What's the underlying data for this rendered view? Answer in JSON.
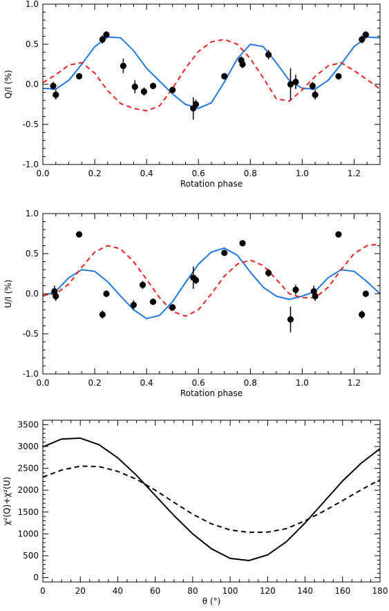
{
  "chart_data": [
    {
      "type": "scatter",
      "xlabel": "Rotation phase",
      "ylabel": "Q/I (%)",
      "xlim": [
        0,
        1.3
      ],
      "ylim": [
        -1.0,
        1.0
      ],
      "xticks": [
        0.0,
        0.2,
        0.4,
        0.6,
        0.8,
        1.0,
        1.2
      ],
      "xtick_labels": [
        "0.0",
        "0.2",
        "0.4",
        "0.6",
        "0.8",
        "1.0",
        "1.2"
      ],
      "yticks": [
        -1.0,
        -0.5,
        0.0,
        0.5,
        1.0
      ],
      "ytick_labels": [
        "-1.0",
        "-0.5",
        "0.0",
        "0.5",
        "1.0"
      ],
      "grid": false,
      "points": [
        {
          "x": 0.04,
          "y": -0.02,
          "err": 0.05
        },
        {
          "x": 0.05,
          "y": -0.13,
          "err": 0.06
        },
        {
          "x": 0.14,
          "y": 0.1,
          "err": 0.03
        },
        {
          "x": 0.23,
          "y": 0.56,
          "err": 0.05
        },
        {
          "x": 0.245,
          "y": 0.62,
          "err": 0.04
        },
        {
          "x": 0.31,
          "y": 0.23,
          "err": 0.09
        },
        {
          "x": 0.355,
          "y": -0.03,
          "err": 0.08
        },
        {
          "x": 0.39,
          "y": -0.09,
          "err": 0.05
        },
        {
          "x": 0.425,
          "y": -0.02,
          "err": 0.04
        },
        {
          "x": 0.5,
          "y": -0.07,
          "err": 0.04
        },
        {
          "x": 0.58,
          "y": -0.3,
          "err": 0.14
        },
        {
          "x": 0.59,
          "y": -0.25,
          "err": 0.06
        },
        {
          "x": 0.7,
          "y": 0.1,
          "err": 0.04
        },
        {
          "x": 0.765,
          "y": 0.3,
          "err": 0.05
        },
        {
          "x": 0.77,
          "y": 0.25,
          "err": 0.05
        },
        {
          "x": 0.87,
          "y": 0.37,
          "err": 0.06
        },
        {
          "x": 0.955,
          "y": 0.0,
          "err": 0.2
        },
        {
          "x": 0.975,
          "y": 0.03,
          "err": 0.09
        },
        {
          "x": 1.04,
          "y": -0.02,
          "err": 0.05
        },
        {
          "x": 1.05,
          "y": -0.13,
          "err": 0.06
        },
        {
          "x": 1.14,
          "y": 0.1,
          "err": 0.03
        },
        {
          "x": 1.23,
          "y": 0.56,
          "err": 0.05
        },
        {
          "x": 1.245,
          "y": 0.62,
          "err": 0.04
        }
      ],
      "series": [
        {
          "style": "solid",
          "color": "#1f77e0",
          "x": [
            0,
            0.05,
            0.1,
            0.15,
            0.2,
            0.25,
            0.3,
            0.35,
            0.4,
            0.45,
            0.5,
            0.55,
            0.6,
            0.65,
            0.7,
            0.75,
            0.8,
            0.85,
            0.9,
            0.95,
            1.0,
            1.05,
            1.1,
            1.15,
            1.2,
            1.25,
            1.3
          ],
          "y": [
            -0.05,
            -0.06,
            0.05,
            0.25,
            0.47,
            0.59,
            0.58,
            0.42,
            0.2,
            0.04,
            -0.12,
            -0.25,
            -0.3,
            -0.23,
            0.03,
            0.32,
            0.5,
            0.47,
            0.27,
            0.05,
            -0.05,
            -0.06,
            0.05,
            0.25,
            0.47,
            0.59,
            0.58
          ]
        },
        {
          "style": "dashed",
          "color": "#e8201e",
          "x": [
            0,
            0.05,
            0.1,
            0.15,
            0.2,
            0.25,
            0.3,
            0.35,
            0.4,
            0.45,
            0.5,
            0.55,
            0.6,
            0.65,
            0.7,
            0.75,
            0.8,
            0.85,
            0.9,
            0.95,
            1.0,
            1.05,
            1.1,
            1.15,
            1.2,
            1.25,
            1.3
          ],
          "y": [
            0.02,
            0.12,
            0.24,
            0.27,
            0.14,
            -0.08,
            -0.24,
            -0.3,
            -0.33,
            -0.27,
            -0.05,
            0.2,
            0.41,
            0.53,
            0.56,
            0.5,
            0.32,
            0.08,
            -0.18,
            -0.21,
            -0.07,
            0.1,
            0.23,
            0.27,
            0.17,
            0.06,
            -0.06
          ]
        }
      ]
    },
    {
      "type": "scatter",
      "xlabel": "Rotation phase",
      "ylabel": "U/I (%)",
      "xlim": [
        0,
        1.3
      ],
      "ylim": [
        -1.0,
        1.0
      ],
      "xticks": [
        0.0,
        0.2,
        0.4,
        0.6,
        0.8,
        1.0,
        1.2
      ],
      "xtick_labels": [
        "0.0",
        "0.2",
        "0.4",
        "0.6",
        "0.8",
        "1.0",
        "1.2"
      ],
      "yticks": [
        -1.0,
        -0.5,
        0.0,
        0.5,
        1.0
      ],
      "ytick_labels": [
        "-1.0",
        "-0.5",
        "0.0",
        "0.5",
        "1.0"
      ],
      "grid": false,
      "points": [
        {
          "x": 0.045,
          "y": 0.03,
          "err": 0.07
        },
        {
          "x": 0.05,
          "y": -0.03,
          "err": 0.06
        },
        {
          "x": 0.14,
          "y": 0.74,
          "err": 0.03
        },
        {
          "x": 0.23,
          "y": -0.26,
          "err": 0.05
        },
        {
          "x": 0.245,
          "y": 0.0,
          "err": 0.04
        },
        {
          "x": 0.35,
          "y": -0.14,
          "err": 0.06
        },
        {
          "x": 0.385,
          "y": 0.11,
          "err": 0.05
        },
        {
          "x": 0.425,
          "y": -0.1,
          "err": 0.04
        },
        {
          "x": 0.5,
          "y": -0.17,
          "err": 0.04
        },
        {
          "x": 0.58,
          "y": 0.2,
          "err": 0.14
        },
        {
          "x": 0.59,
          "y": 0.17,
          "err": 0.05
        },
        {
          "x": 0.7,
          "y": 0.51,
          "err": 0.04
        },
        {
          "x": 0.77,
          "y": 0.63,
          "err": 0.04
        },
        {
          "x": 0.87,
          "y": 0.26,
          "err": 0.05
        },
        {
          "x": 0.955,
          "y": -0.32,
          "err": 0.16
        },
        {
          "x": 0.975,
          "y": 0.05,
          "err": 0.06
        },
        {
          "x": 1.045,
          "y": 0.03,
          "err": 0.07
        },
        {
          "x": 1.05,
          "y": -0.03,
          "err": 0.06
        },
        {
          "x": 1.14,
          "y": 0.74,
          "err": 0.03
        },
        {
          "x": 1.23,
          "y": -0.26,
          "err": 0.05
        },
        {
          "x": 1.245,
          "y": 0.0,
          "err": 0.04
        }
      ],
      "series": [
        {
          "style": "solid",
          "color": "#1f77e0",
          "x": [
            0,
            0.05,
            0.1,
            0.15,
            0.2,
            0.25,
            0.3,
            0.35,
            0.4,
            0.45,
            0.5,
            0.55,
            0.6,
            0.65,
            0.7,
            0.75,
            0.8,
            0.85,
            0.9,
            0.95,
            1.0,
            1.05,
            1.1,
            1.15,
            1.2,
            1.25,
            1.3
          ],
          "y": [
            -0.03,
            0.03,
            0.2,
            0.3,
            0.28,
            0.15,
            -0.03,
            -0.2,
            -0.31,
            -0.27,
            -0.1,
            0.14,
            0.37,
            0.52,
            0.57,
            0.48,
            0.27,
            0.08,
            -0.03,
            -0.07,
            -0.03,
            0.03,
            0.2,
            0.3,
            0.28,
            0.15,
            0.0
          ]
        },
        {
          "style": "dashed",
          "color": "#e8201e",
          "x": [
            0,
            0.05,
            0.1,
            0.15,
            0.2,
            0.25,
            0.3,
            0.35,
            0.4,
            0.45,
            0.5,
            0.55,
            0.6,
            0.65,
            0.7,
            0.75,
            0.8,
            0.85,
            0.9,
            0.95,
            1.0,
            1.05,
            1.1,
            1.15,
            1.2,
            1.25,
            1.3
          ],
          "y": [
            -0.02,
            0.0,
            0.12,
            0.33,
            0.52,
            0.6,
            0.56,
            0.4,
            0.18,
            -0.05,
            -0.22,
            -0.28,
            -0.2,
            0.0,
            0.22,
            0.37,
            0.42,
            0.35,
            0.18,
            0.0,
            -0.05,
            -0.05,
            0.08,
            0.3,
            0.5,
            0.6,
            0.62
          ]
        }
      ]
    },
    {
      "type": "line",
      "xlabel": "θ (°)",
      "ylabel": "χ²(Q)+χ²(U)",
      "xlim": [
        0,
        180
      ],
      "ylim": [
        -100,
        3600
      ],
      "xticks": [
        0,
        20,
        40,
        60,
        80,
        100,
        120,
        140,
        160,
        180
      ],
      "xtick_labels": [
        "0",
        "20",
        "40",
        "60",
        "80",
        "100",
        "120",
        "140",
        "160",
        "180"
      ],
      "yticks": [
        0,
        500,
        1000,
        1500,
        2000,
        2500,
        3000,
        3500
      ],
      "ytick_labels": [
        "0",
        "500",
        "1000",
        "1500",
        "2000",
        "2500",
        "3000",
        "3500"
      ],
      "grid": false,
      "series": [
        {
          "style": "solid",
          "color": "#000000",
          "x": [
            0,
            10,
            20,
            30,
            40,
            50,
            60,
            70,
            80,
            90,
            100,
            110,
            120,
            130,
            140,
            150,
            160,
            170,
            180
          ],
          "y": [
            2990,
            3170,
            3190,
            3040,
            2740,
            2340,
            1880,
            1420,
            1000,
            660,
            440,
            390,
            520,
            820,
            1250,
            1730,
            2210,
            2620,
            2950
          ]
        },
        {
          "style": "dashed",
          "color": "#000000",
          "x": [
            0,
            10,
            20,
            30,
            40,
            50,
            60,
            70,
            80,
            90,
            100,
            110,
            120,
            130,
            140,
            150,
            160,
            170,
            180
          ],
          "y": [
            2300,
            2460,
            2550,
            2540,
            2430,
            2250,
            2000,
            1720,
            1450,
            1230,
            1090,
            1035,
            1040,
            1120,
            1300,
            1520,
            1760,
            2010,
            2240
          ]
        }
      ]
    }
  ]
}
